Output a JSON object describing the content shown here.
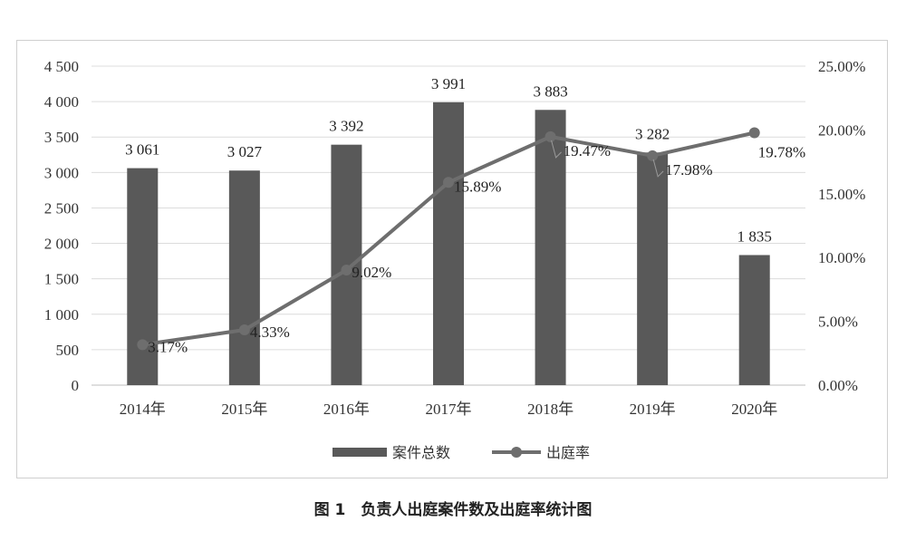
{
  "caption": "图 1　负责人出庭案件数及出庭率统计图",
  "chart_data": {
    "type": "bar+line",
    "categories": [
      "2014年",
      "2015年",
      "2016年",
      "2017年",
      "2018年",
      "2019年",
      "2020年"
    ],
    "series": [
      {
        "name": "案件总数",
        "type": "bar",
        "axis": "left",
        "values": [
          3061,
          3027,
          3392,
          3991,
          3883,
          3282,
          1835
        ],
        "labels": [
          "3 061",
          "3 027",
          "3 392",
          "3 991",
          "3 883",
          "3 282",
          "1 835"
        ],
        "color": "#595959"
      },
      {
        "name": "出庭率",
        "type": "line",
        "axis": "right",
        "values": [
          3.17,
          4.33,
          9.02,
          15.89,
          19.47,
          17.98,
          19.78
        ],
        "labels": [
          "3.17%",
          "4.33%",
          "9.02%",
          "15.89%",
          "19.47%",
          "17.98%",
          "19.78%"
        ],
        "color": "#6e6e6e"
      }
    ],
    "left_axis": {
      "range": [
        0,
        4500
      ],
      "ticks": [
        0,
        500,
        1000,
        1500,
        2000,
        2500,
        3000,
        3500,
        4000,
        4500
      ],
      "tick_labels": [
        "0",
        "500",
        "1 000",
        "1 500",
        "2 000",
        "2 500",
        "3 000",
        "3 500",
        "4 000",
        "4 500"
      ]
    },
    "right_axis": {
      "range": [
        0,
        25
      ],
      "ticks": [
        0,
        5,
        10,
        15,
        20,
        25
      ],
      "tick_labels": [
        "0.00%",
        "5.00%",
        "10.00%",
        "15.00%",
        "20.00%",
        "25.00%"
      ]
    },
    "grid": true,
    "legend": "bottom"
  }
}
